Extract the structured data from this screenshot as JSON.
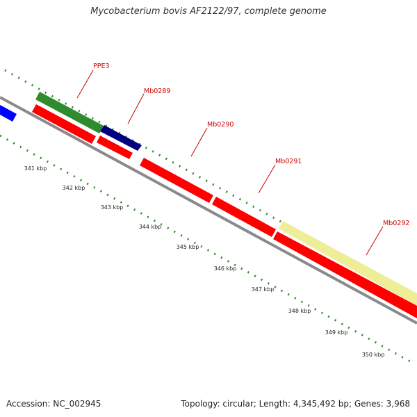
{
  "title": "Mycobacterium bovis AF2122/97, complete genome",
  "footer": {
    "accession": "Accession: NC_002945",
    "stats": "Topology: circular; Length: 4,345,492 bp; Genes: 3,968"
  },
  "colors": {
    "backbone": "#8a8a8a",
    "tick": "#2e8b2e",
    "label": "#cc0000",
    "feature_red": "#ff0000",
    "feature_green": "#2e8b2e",
    "feature_navy": "#000080",
    "feature_blue": "#0000ff",
    "feature_yellow": "#eeee99"
  },
  "kbp_labels": [
    "341 kbp",
    "342 kbp",
    "343 kbp",
    "344 kbp",
    "345 kbp",
    "346 kbp",
    "347 kbp",
    "348 kbp",
    "349 kbp",
    "350 kbp"
  ],
  "gene_labels": [
    "PPE3",
    "Mb0289",
    "Mb0290",
    "Mb0291",
    "Mb0292"
  ]
}
